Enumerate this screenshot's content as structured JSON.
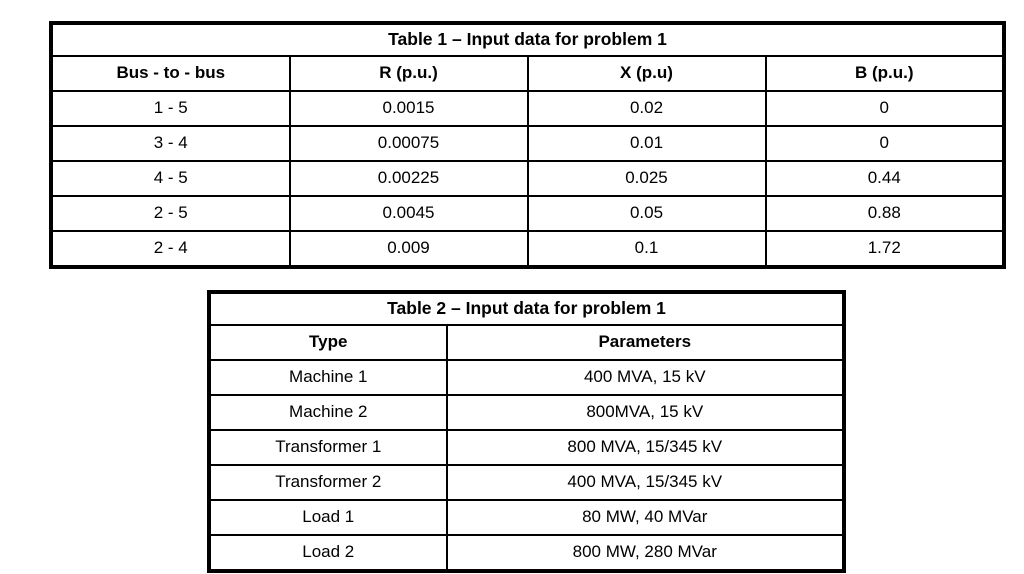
{
  "colors": {
    "background": "#ffffff",
    "border": "#000000",
    "text": "#000000"
  },
  "table1": {
    "title": "Table 1 – Input data for problem 1",
    "columns": [
      "Bus - to - bus",
      "R (p.u.)",
      "X (p.u)",
      "B (p.u.)"
    ],
    "rows": [
      [
        "1 - 5",
        "0.0015",
        "0.02",
        "0"
      ],
      [
        "3 - 4",
        "0.00075",
        "0.01",
        "0"
      ],
      [
        "4 - 5",
        "0.00225",
        "0.025",
        "0.44"
      ],
      [
        "2 - 5",
        "0.0045",
        "0.05",
        "0.88"
      ],
      [
        "2 - 4",
        "0.009",
        "0.1",
        "1.72"
      ]
    ]
  },
  "table2": {
    "title": "Table 2 – Input data for problem 1",
    "columns": [
      "Type",
      "Parameters"
    ],
    "rows": [
      [
        "Machine 1",
        "400 MVA, 15 kV"
      ],
      [
        "Machine 2",
        "800MVA, 15 kV"
      ],
      [
        "Transformer 1",
        "800 MVA, 15/345 kV"
      ],
      [
        "Transformer 2",
        "400 MVA, 15/345 kV"
      ],
      [
        "Load 1",
        "80 MW, 40 MVar"
      ],
      [
        "Load 2",
        "800 MW, 280 MVar"
      ]
    ]
  }
}
